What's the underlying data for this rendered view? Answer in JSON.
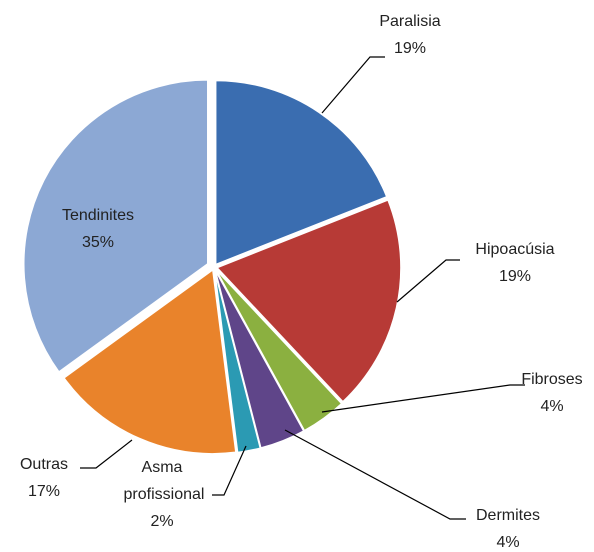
{
  "chart_data": {
    "type": "pie",
    "categories": [
      "Paralisia",
      "Hipoacúsia",
      "Fibroses",
      "Dermites",
      "Asma profissional",
      "Outras",
      "Tendinites"
    ],
    "values": [
      19,
      19,
      4,
      4,
      2,
      17,
      35
    ],
    "value_labels": [
      "19%",
      "19%",
      "4%",
      "4%",
      "2%",
      "17%",
      "35%"
    ],
    "colors": [
      "#3a6db0",
      "#b73a36",
      "#8bb040",
      "#5f4589",
      "#2b9ab3",
      "#e9832b",
      "#8ca8d4"
    ]
  }
}
